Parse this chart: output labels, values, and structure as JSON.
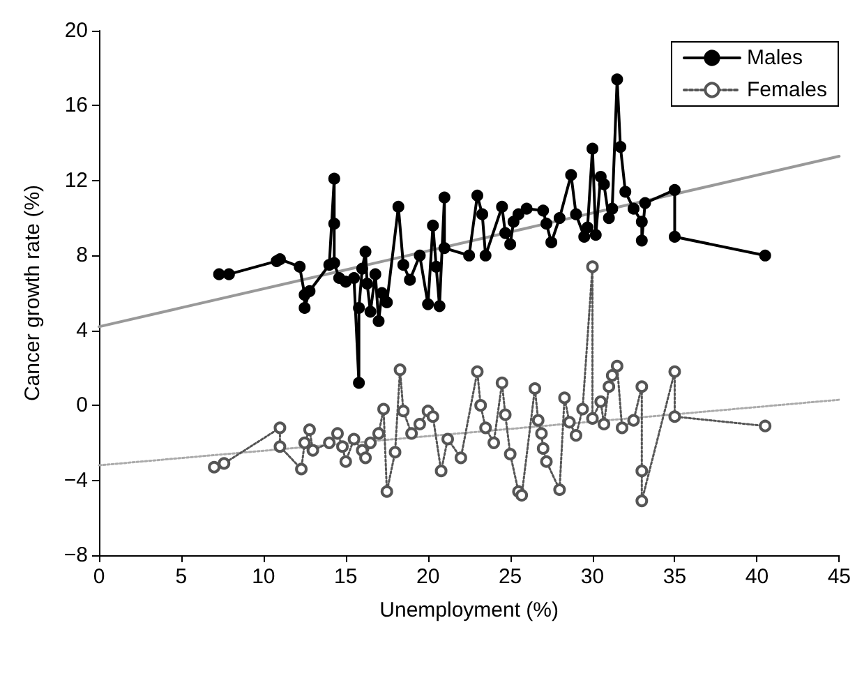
{
  "chart_data": {
    "type": "line",
    "xlabel": "Unemployment (%)",
    "ylabel": "Cancer growth rate (%)",
    "xlim": [
      0,
      45
    ],
    "xticks": [
      0,
      5,
      10,
      15,
      20,
      25,
      30,
      35,
      40,
      45
    ],
    "ylim": [
      -8,
      20
    ],
    "yticks": [
      {
        "value": -8,
        "label": "−8"
      },
      {
        "value": -4,
        "label": "−4"
      },
      0,
      4,
      8,
      12,
      16,
      20
    ],
    "grid": false,
    "legend": "top right",
    "series": [
      {
        "name": "Males",
        "color": "#000000",
        "marker": "circle",
        "line_style": "solid",
        "x": [
          7.3,
          7.9,
          10.8,
          11.0,
          12.2,
          12.5,
          12.5,
          12.8,
          14.0,
          14.3,
          14.3,
          14.3,
          14.6,
          15.0,
          15.5,
          15.8,
          15.8,
          16.0,
          16.2,
          16.3,
          16.5,
          16.8,
          17.0,
          17.2,
          17.5,
          18.2,
          18.5,
          18.9,
          19.5,
          20.0,
          20.3,
          20.5,
          20.7,
          21.0,
          21.0,
          22.5,
          23.0,
          23.3,
          23.5,
          24.5,
          24.7,
          25.0,
          25.2,
          25.5,
          26.0,
          27.0,
          27.2,
          27.5,
          28.0,
          28.7,
          29.0,
          29.5,
          29.7,
          30.0,
          30.2,
          30.5,
          30.7,
          31.0,
          31.2,
          31.5,
          31.7,
          32.0,
          32.5,
          33.0,
          33.0,
          33.2,
          35.0,
          35.0,
          40.5
        ],
        "values": [
          7.0,
          7.0,
          7.7,
          7.8,
          7.4,
          5.9,
          5.2,
          6.1,
          7.5,
          12.1,
          9.7,
          7.6,
          6.8,
          6.6,
          6.8,
          1.2,
          5.2,
          7.3,
          8.2,
          6.5,
          5.0,
          7.0,
          4.5,
          6.0,
          5.5,
          10.6,
          7.5,
          6.7,
          8.0,
          5.4,
          9.6,
          7.4,
          5.3,
          11.1,
          8.4,
          8.0,
          11.2,
          10.2,
          8.0,
          10.6,
          9.2,
          8.6,
          9.8,
          10.2,
          10.5,
          10.4,
          9.7,
          8.7,
          10.0,
          12.3,
          10.2,
          9.0,
          9.5,
          13.7,
          9.1,
          12.2,
          11.8,
          10.0,
          10.5,
          17.4,
          13.8,
          11.4,
          10.5,
          9.8,
          8.8,
          10.8,
          11.5,
          9.0,
          8.0
        ]
      },
      {
        "name": "Females",
        "color": "#555555",
        "marker": "circle",
        "line_style": "dotted",
        "x": [
          7.0,
          7.6,
          11.0,
          11.0,
          12.3,
          12.5,
          12.8,
          13.0,
          14.0,
          14.5,
          14.8,
          15.0,
          15.5,
          16.0,
          16.2,
          16.5,
          17.0,
          17.3,
          17.5,
          18.0,
          18.3,
          18.5,
          19.0,
          19.5,
          20.0,
          20.3,
          20.8,
          21.2,
          22.0,
          23.0,
          23.2,
          23.5,
          24.0,
          24.5,
          24.7,
          25.0,
          25.5,
          25.7,
          26.5,
          26.7,
          26.9,
          27.0,
          27.2,
          28.0,
          28.3,
          28.6,
          29.0,
          29.4,
          30.0,
          30.0,
          30.5,
          30.7,
          31.0,
          31.2,
          31.5,
          31.8,
          32.5,
          33.0,
          33.0,
          33.0,
          35.0,
          35.0,
          40.5
        ],
        "values": [
          -3.3,
          -3.1,
          -1.2,
          -2.2,
          -3.4,
          -2.0,
          -1.3,
          -2.4,
          -2.0,
          -1.5,
          -2.2,
          -3.0,
          -1.8,
          -2.4,
          -2.8,
          -2.0,
          -1.5,
          -0.2,
          -4.6,
          -2.5,
          1.9,
          -0.3,
          -1.5,
          -1.0,
          -0.3,
          -0.6,
          -3.5,
          -1.8,
          -2.8,
          1.8,
          0.0,
          -1.2,
          -2.0,
          1.2,
          -0.5,
          -2.6,
          -4.6,
          -4.8,
          0.9,
          -0.8,
          -1.5,
          -2.3,
          -3.0,
          -4.5,
          0.4,
          -0.9,
          -1.6,
          -0.2,
          7.4,
          -0.7,
          0.2,
          -1.0,
          1.0,
          1.6,
          2.1,
          -1.2,
          -0.8,
          1.0,
          -3.5,
          -5.1,
          1.8,
          -0.6,
          -1.1
        ]
      },
      {
        "color": "#999999",
        "marker": "none",
        "line_style": "solid",
        "x": [
          0,
          45
        ],
        "values": [
          4.2,
          13.3
        ]
      },
      {
        "color": "#aaaaaa",
        "marker": "none",
        "line_style": "dotted",
        "x": [
          0,
          45
        ],
        "values": [
          -3.2,
          0.3
        ]
      }
    ]
  }
}
